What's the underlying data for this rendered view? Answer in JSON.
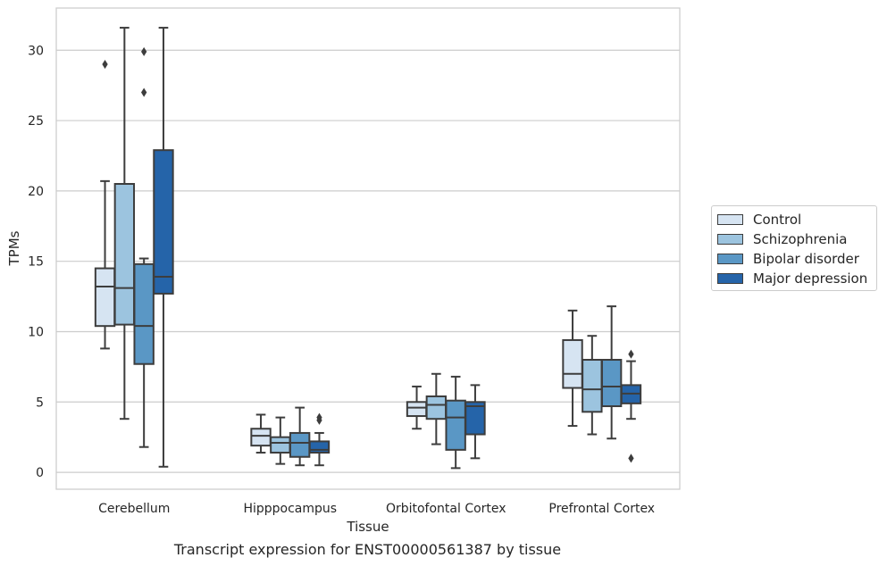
{
  "caption": "Transcript expression for ENST00000561387 by tissue",
  "chart_data": {
    "type": "box",
    "xlabel": "Tissue",
    "ylabel": "TPMs",
    "ylim": [
      -1.2,
      33.0
    ],
    "yticks": [
      0,
      5,
      10,
      15,
      20,
      25,
      30
    ],
    "ytick_labels": [
      "0",
      "5",
      "10",
      "15",
      "20",
      "25",
      "30"
    ],
    "grid": "horizontal",
    "legend_position": "right",
    "categories": [
      "Cerebellum",
      "Hipppocampus",
      "Orbitofontal Cortex",
      "Prefrontal Cortex"
    ],
    "series": [
      {
        "name": "Control",
        "color": "#d6e4f2",
        "boxes": [
          {
            "whislo": 8.8,
            "q1": 10.4,
            "med": 13.2,
            "q3": 14.5,
            "whishi": 20.7,
            "fliers": [
              29.0
            ]
          },
          {
            "whislo": 1.4,
            "q1": 1.9,
            "med": 2.6,
            "q3": 3.1,
            "whishi": 4.1,
            "fliers": []
          },
          {
            "whislo": 3.1,
            "q1": 4.0,
            "med": 4.6,
            "q3": 5.0,
            "whishi": 6.1,
            "fliers": []
          },
          {
            "whislo": 3.3,
            "q1": 6.0,
            "med": 7.0,
            "q3": 9.4,
            "whishi": 11.5,
            "fliers": []
          }
        ]
      },
      {
        "name": "Schizophrenia",
        "color": "#9cc4df",
        "boxes": [
          {
            "whislo": 3.8,
            "q1": 10.5,
            "med": 13.1,
            "q3": 20.5,
            "whishi": 31.6,
            "fliers": []
          },
          {
            "whislo": 0.6,
            "q1": 1.4,
            "med": 2.1,
            "q3": 2.5,
            "whishi": 3.9,
            "fliers": []
          },
          {
            "whislo": 2.0,
            "q1": 3.8,
            "med": 4.8,
            "q3": 5.4,
            "whishi": 7.0,
            "fliers": []
          },
          {
            "whislo": 2.7,
            "q1": 4.3,
            "med": 5.9,
            "q3": 8.0,
            "whishi": 9.7,
            "fliers": []
          }
        ]
      },
      {
        "name": "Bipolar disorder",
        "color": "#5a97c5",
        "boxes": [
          {
            "whislo": 1.8,
            "q1": 7.7,
            "med": 10.4,
            "q3": 14.8,
            "whishi": 15.2,
            "fliers": [
              27.0,
              29.9
            ]
          },
          {
            "whislo": 0.5,
            "q1": 1.1,
            "med": 2.1,
            "q3": 2.8,
            "whishi": 4.6,
            "fliers": []
          },
          {
            "whislo": 0.3,
            "q1": 1.6,
            "med": 3.9,
            "q3": 5.1,
            "whishi": 6.8,
            "fliers": []
          },
          {
            "whislo": 2.4,
            "q1": 4.7,
            "med": 6.1,
            "q3": 8.0,
            "whishi": 11.8,
            "fliers": []
          }
        ]
      },
      {
        "name": "Major depression",
        "color": "#2564a9",
        "boxes": [
          {
            "whislo": 0.4,
            "q1": 12.7,
            "med": 13.9,
            "q3": 22.9,
            "whishi": 31.6,
            "fliers": []
          },
          {
            "whislo": 0.5,
            "q1": 1.4,
            "med": 1.6,
            "q3": 2.2,
            "whishi": 2.8,
            "fliers": [
              3.7,
              3.9
            ]
          },
          {
            "whislo": 1.0,
            "q1": 2.7,
            "med": 4.7,
            "q3": 5.0,
            "whishi": 6.2,
            "fliers": []
          },
          {
            "whislo": 3.8,
            "q1": 4.9,
            "med": 5.6,
            "q3": 6.2,
            "whishi": 7.9,
            "fliers": [
              1.0,
              8.4
            ]
          }
        ]
      }
    ]
  }
}
